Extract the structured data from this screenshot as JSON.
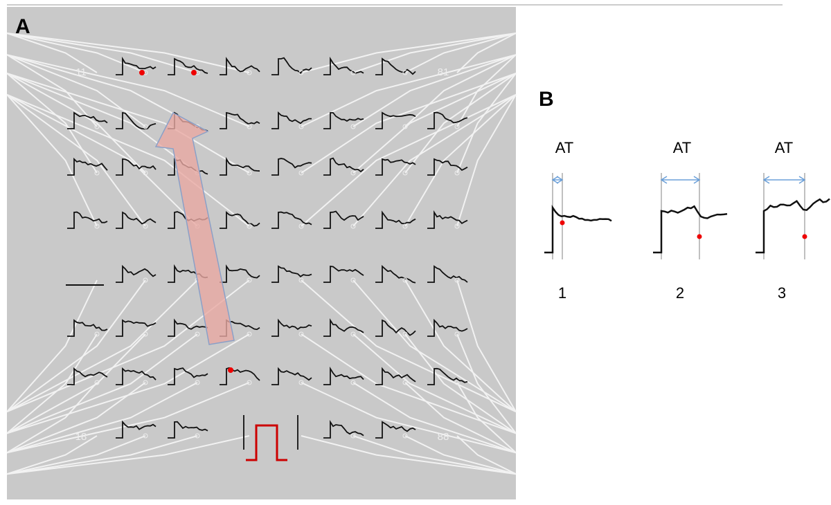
{
  "panel_a": {
    "label": "A",
    "corner_labels": [
      "11",
      "81",
      "18",
      "88"
    ]
  },
  "panel_b": {
    "label": "B",
    "traces": [
      {
        "marker": "AT",
        "number": "1"
      },
      {
        "marker": "AT",
        "number": "2"
      },
      {
        "marker": "AT",
        "number": "3"
      }
    ]
  }
}
